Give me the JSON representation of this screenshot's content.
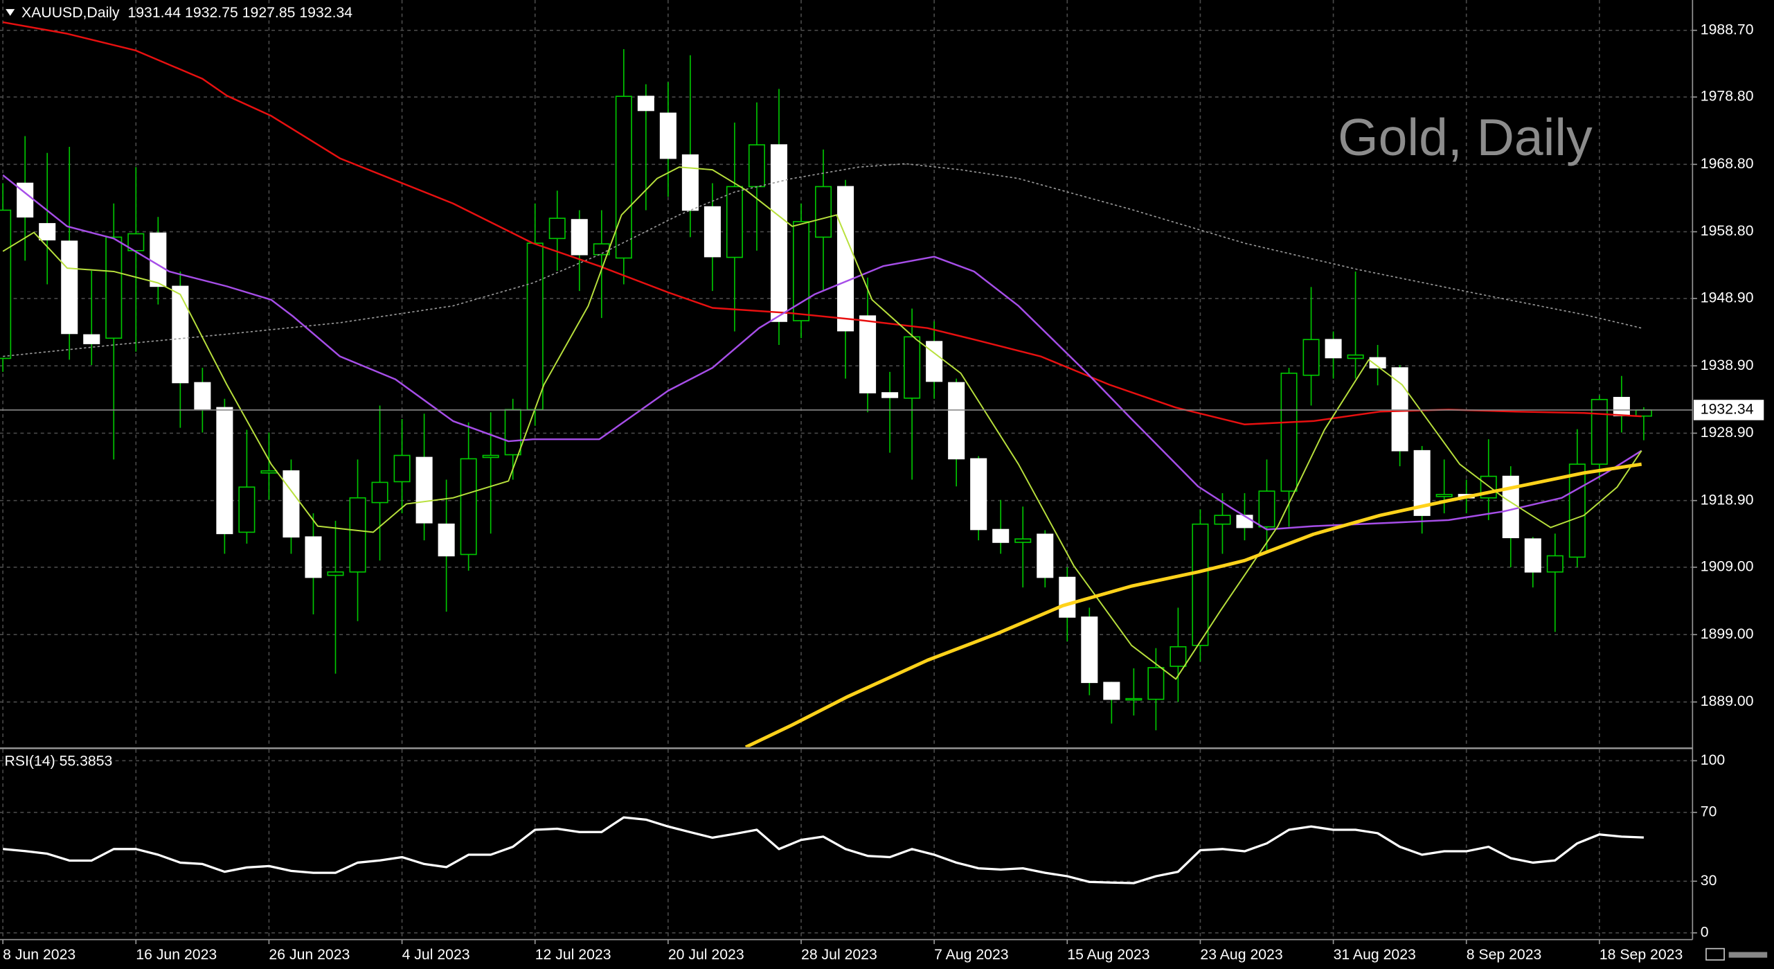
{
  "chart_data": [
    {
      "type": "candlestick",
      "title": "XAUUSD,Daily  1931.44 1932.75 1927.85 1932.34",
      "watermark": "Gold, Daily",
      "categories": [
        "8 Jun 2023",
        null,
        null,
        null,
        null,
        null,
        "16 Jun 2023",
        null,
        null,
        null,
        null,
        null,
        "26 Jun 2023",
        null,
        null,
        null,
        null,
        null,
        "4 Jul 2023",
        null,
        null,
        null,
        null,
        null,
        "12 Jul 2023",
        null,
        null,
        null,
        null,
        null,
        "20 Jul 2023",
        null,
        null,
        null,
        null,
        null,
        "28 Jul 2023",
        null,
        null,
        null,
        null,
        null,
        "7 Aug 2023",
        null,
        null,
        null,
        null,
        null,
        "15 Aug 2023",
        null,
        null,
        null,
        null,
        null,
        "23 Aug 2023",
        null,
        null,
        null,
        null,
        null,
        "31 Aug 2023",
        null,
        null,
        null,
        null,
        null,
        "8 Sep 2023",
        null,
        null,
        null,
        null,
        null,
        "18 Sep 2023",
        null,
        null
      ],
      "open": [
        1940,
        1966,
        1960,
        1957.4,
        1943.5,
        1943,
        1956,
        1958.6,
        1950.7,
        1936.4,
        1932.7,
        1914.2,
        1923,
        1923.3,
        1913.5,
        1907.8,
        1908.3,
        1918.6,
        1921.7,
        1925.3,
        1915.4,
        1910.9,
        1925.3,
        1925.7,
        1932.4,
        1957.8,
        1960.6,
        1955.4,
        1954.9,
        1978.9,
        1976.4,
        1970.2,
        1962.5,
        1955,
        1965.5,
        1971.7,
        1945.6,
        1958,
        1965.5,
        1946.3,
        1934.9,
        1934.1,
        1942.5,
        1936.4,
        1925.1,
        1914.6,
        1912.7,
        1913.9,
        1907.5,
        1901.6,
        1891.9,
        1889.3,
        1889.4,
        1894.3,
        1897.4,
        1915.4,
        1916.7,
        1915,
        1920.3,
        1937.5,
        1942.8,
        1940,
        1940.1,
        1938.6,
        1926.3,
        1919.5,
        1919.8,
        1919.3,
        1922.5,
        1913.2,
        1908.3,
        1910.5,
        1924.3,
        1934.2,
        1931.44
      ],
      "high": [
        1966,
        1973,
        1970.5,
        1971.4,
        1953,
        1963,
        1968.4,
        1961,
        1952.9,
        1938.6,
        1934,
        1929.4,
        1929,
        1925,
        1917,
        1915.9,
        1925,
        1933,
        1931,
        1931.8,
        1922,
        1930.5,
        1932,
        1934,
        1963,
        1964.9,
        1962,
        1962,
        1985.9,
        1980.7,
        1981,
        1985,
        1966,
        1975,
        1978,
        1980,
        1963,
        1971,
        1966.5,
        1952,
        1938,
        1947.4,
        1945.5,
        1937,
        1925.5,
        1919,
        1918,
        1914.5,
        1909,
        1903,
        1892,
        1894,
        1897,
        1903,
        1917.6,
        1920,
        1920,
        1925,
        1938.6,
        1950.6,
        1944,
        1952.9,
        1942,
        1939,
        1927,
        1925,
        1922,
        1928,
        1924,
        1913.5,
        1914,
        1929.5,
        1934.5,
        1937.4,
        1932.75
      ],
      "low": [
        1938,
        1954.5,
        1951,
        1939.8,
        1939,
        1925,
        1941,
        1948,
        1929.7,
        1929,
        1911,
        1912.5,
        1919,
        1911,
        1902,
        1893.2,
        1901,
        1910,
        1917,
        1913,
        1902.4,
        1908.5,
        1914,
        1922,
        1930,
        1953,
        1950,
        1946,
        1951,
        1962,
        1964,
        1958,
        1950,
        1944,
        1956,
        1942,
        1943,
        1950,
        1937,
        1932,
        1926,
        1922,
        1934,
        1921,
        1913,
        1911,
        1906,
        1906,
        1898,
        1890,
        1885.8,
        1887,
        1884.8,
        1889,
        1895,
        1911,
        1913,
        1911,
        1915,
        1933,
        1937,
        1937,
        1936,
        1924,
        1914,
        1917,
        1917,
        1916,
        1909,
        1906,
        1899.4,
        1909,
        1922,
        1929,
        1927.85
      ],
      "close": [
        1962,
        1961,
        1957.6,
        1943.7,
        1942.2,
        1958,
        1958.5,
        1950.7,
        1936.4,
        1932.5,
        1914,
        1920.9,
        1923.3,
        1913.5,
        1907.5,
        1908.3,
        1919.3,
        1921.6,
        1925.6,
        1915.6,
        1910.7,
        1925.1,
        1925.6,
        1932.4,
        1957.1,
        1960.8,
        1955.4,
        1957,
        1978.9,
        1976.8,
        1969.7,
        1962,
        1955.1,
        1965.5,
        1971.7,
        1945.5,
        1960.3,
        1965.5,
        1944.1,
        1934.9,
        1934.2,
        1943.2,
        1936.6,
        1925.1,
        1914.6,
        1912.7,
        1913.2,
        1907.5,
        1901.6,
        1891.9,
        1889.4,
        1889.5,
        1894.1,
        1897.2,
        1915.4,
        1916.7,
        1914.9,
        1920.3,
        1937.8,
        1942.8,
        1940.1,
        1940.5,
        1938.6,
        1926.3,
        1916.7,
        1919.8,
        1919.3,
        1922.5,
        1913.4,
        1908.3,
        1910.7,
        1924.3,
        1933.9,
        1931.5,
        1932.34
      ],
      "up_color": "#00c800",
      "down_color": "#ffffff",
      "lines": [
        {
          "color": "#9a9a9a",
          "width": 1,
          "dash": "2,2",
          "x": [
            0,
            5,
            10.1,
            15.2,
            20.3,
            23.9,
            26.9,
            30.5,
            33,
            35.6,
            38.6,
            40.7,
            43.2,
            45.8,
            50.9,
            56,
            61.1,
            66.2,
            71.3,
            73.9
          ],
          "values": [
            1940.3,
            1942,
            1943.6,
            1945.3,
            1947.8,
            1951.2,
            1955.4,
            1961.3,
            1964.7,
            1966.7,
            1968.4,
            1968.9,
            1968,
            1966.7,
            1962.1,
            1957.1,
            1953.2,
            1949.8,
            1946.5,
            1944.5
          ]
        },
        {
          "color": "#e81010",
          "width": 1.5,
          "x": [
            0,
            2.9,
            6,
            9,
            10.1,
            12.1,
            15.2,
            20.3,
            23.9,
            26.9,
            30,
            32,
            35.6,
            38.6,
            41.7,
            43.8,
            46.8,
            49.9,
            52.9,
            56,
            59.1,
            62.1,
            65.2,
            68.2,
            71.3,
            73.9
          ],
          "values": [
            1989.9,
            1988.2,
            1985.7,
            1981.5,
            1979,
            1976,
            1969.7,
            1963,
            1957.1,
            1953.7,
            1949.8,
            1947.5,
            1946.7,
            1945.7,
            1944.5,
            1942.8,
            1940.3,
            1936.1,
            1932.7,
            1930.2,
            1930.7,
            1932.1,
            1932.4,
            1932.1,
            1931.9,
            1931.4
          ]
        },
        {
          "color": "#a64ee8",
          "width": 1.5,
          "x": [
            0,
            2.9,
            5,
            7.5,
            10.1,
            12.1,
            13.1,
            15.2,
            17.7,
            20.3,
            22.8,
            23.9,
            26.9,
            30,
            32,
            34.1,
            36.6,
            39.7,
            42,
            43.8,
            45.8,
            48.9,
            50.9,
            53.9,
            55.5,
            57,
            59.1,
            62.6,
            65.2,
            67.7,
            70.3,
            72.3,
            73.9
          ],
          "values": [
            1967.2,
            1959.6,
            1957.8,
            1952.9,
            1950.7,
            1948.7,
            1946.2,
            1940.3,
            1936.9,
            1930.7,
            1927.7,
            1928,
            1928,
            1935.2,
            1938.6,
            1944.5,
            1949.5,
            1953.7,
            1955.1,
            1952.9,
            1947.8,
            1937.8,
            1931,
            1921,
            1917.6,
            1914.6,
            1915.1,
            1915.6,
            1916,
            1917.3,
            1919.3,
            1923,
            1926.3
          ]
        },
        {
          "color": "#b8e03c",
          "width": 1.2,
          "x": [
            0,
            1.4,
            2.9,
            5,
            7,
            8,
            10.1,
            12.1,
            14.2,
            16.7,
            18.2,
            20.3,
            22.8,
            24.4,
            26.4,
            27.9,
            29.5,
            30.5,
            32,
            33.5,
            35.6,
            37.6,
            39.2,
            41.2,
            43.2,
            45.8,
            48.3,
            50.9,
            52.9,
            54.9,
            57.5,
            59.6,
            61.6,
            63.1,
            65.7,
            67.7,
            69.8,
            71.3,
            72.8,
            73.9
          ],
          "values": [
            1955.9,
            1958.7,
            1953.4,
            1952.9,
            1951.2,
            1949.5,
            1936.1,
            1924.3,
            1915.1,
            1914.2,
            1918.4,
            1919.3,
            1921.8,
            1936.1,
            1947.8,
            1961.3,
            1966.7,
            1968.4,
            1968,
            1965,
            1959.6,
            1961.3,
            1948.7,
            1942.8,
            1937.8,
            1924.3,
            1909.2,
            1897.4,
            1892.4,
            1902.5,
            1915.1,
            1929.4,
            1939.8,
            1936.1,
            1924.3,
            1919.3,
            1914.9,
            1916.7,
            1920.9,
            1926.3
          ]
        },
        {
          "color": "#ffd21a",
          "width": 3,
          "x": [
            33.5,
            35.6,
            38.1,
            41.7,
            44.8,
            47.8,
            50.9,
            53.9,
            56,
            59.1,
            62.1,
            65.2,
            68.2,
            71.3,
            73.9
          ],
          "values": [
            1882.3,
            1885.6,
            1889.8,
            1895.2,
            1899.1,
            1903.3,
            1906.2,
            1908.3,
            1910,
            1913.9,
            1916.7,
            1918.9,
            1920.9,
            1923,
            1924.3
          ]
        }
      ],
      "current_price": 1932.34,
      "xlim": [
        -0.13,
        76.2
      ],
      "ylim": [
        1882.3,
        1993.2
      ],
      "yticks": [
        {
          "value": 1988.7,
          "label": "1988.70"
        },
        {
          "value": 1978.8,
          "label": "1978.80"
        },
        {
          "value": 1968.8,
          "label": "1968.80"
        },
        {
          "value": 1958.8,
          "label": "1958.80"
        },
        {
          "value": 1948.9,
          "label": "1948.90"
        },
        {
          "value": 1938.9,
          "label": "1938.90"
        },
        {
          "value": 1928.9,
          "label": "1928.90"
        },
        {
          "value": 1918.9,
          "label": "1918.90"
        },
        {
          "value": 1909.0,
          "label": "1909.00"
        },
        {
          "value": 1899.0,
          "label": "1899.00"
        },
        {
          "value": 1889.0,
          "label": "1889.00"
        }
      ],
      "grid": true
    },
    {
      "type": "line",
      "title": "RSI(14) 55.3853",
      "color": "#ffffff",
      "values": [
        48.7,
        47.5,
        46,
        42,
        42,
        48.7,
        48.7,
        45.4,
        40.8,
        40,
        35.5,
        38,
        38.8,
        36,
        34.9,
        34.9,
        40.8,
        42.1,
        44,
        40,
        38.2,
        45.4,
        45.4,
        50,
        59.9,
        60.5,
        58.6,
        58.6,
        67.1,
        65.8,
        61.8,
        58.5,
        55.3,
        57.5,
        59.9,
        48.7,
        54,
        55.9,
        48.7,
        44.7,
        44,
        48.7,
        45.4,
        40.8,
        37.5,
        36.8,
        37.5,
        34.9,
        32.9,
        29.6,
        29.2,
        28.9,
        32.9,
        35.5,
        48,
        48.7,
        47.4,
        52,
        59.9,
        61.8,
        59.9,
        59.9,
        57.9,
        50,
        45.4,
        47.4,
        47.4,
        50,
        43.4,
        40.8,
        42.1,
        52,
        57.2,
        55.9,
        55.4
      ],
      "ylim": [
        -3.9,
        106.6
      ],
      "yticks": [
        100,
        70,
        30,
        0
      ],
      "grid": true
    }
  ]
}
